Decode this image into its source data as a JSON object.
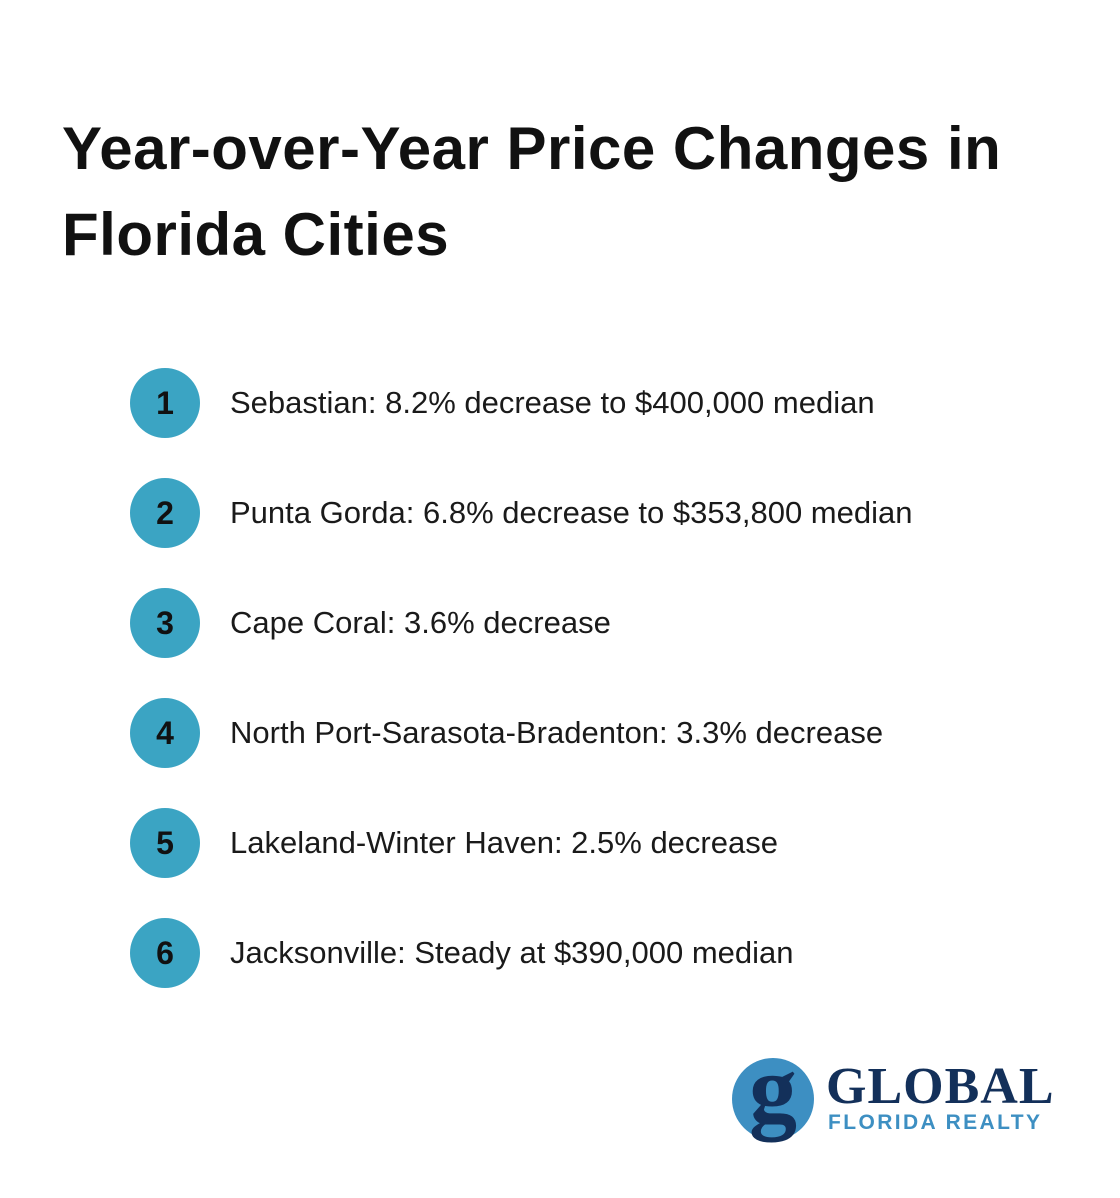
{
  "header": {
    "title": "Year-over-Year Price Changes in Florida Cities"
  },
  "items": [
    {
      "number": "1",
      "text": "Sebastian: 8.2% decrease to $400,000 median"
    },
    {
      "number": "2",
      "text": "Punta Gorda: 6.8% decrease to $353,800 median"
    },
    {
      "number": "3",
      "text": "Cape Coral: 3.6% decrease"
    },
    {
      "number": "4",
      "text": "North Port-Sarasota-Bradenton: 3.3% decrease"
    },
    {
      "number": "5",
      "text": "Lakeland-Winter Haven: 2.5% decrease"
    },
    {
      "number": "6",
      "text": "Jacksonville: Steady at $390,000 median"
    }
  ],
  "logo": {
    "mark": "g",
    "name": "GLOBAL",
    "tagline": "FLORIDA REALTY"
  }
}
